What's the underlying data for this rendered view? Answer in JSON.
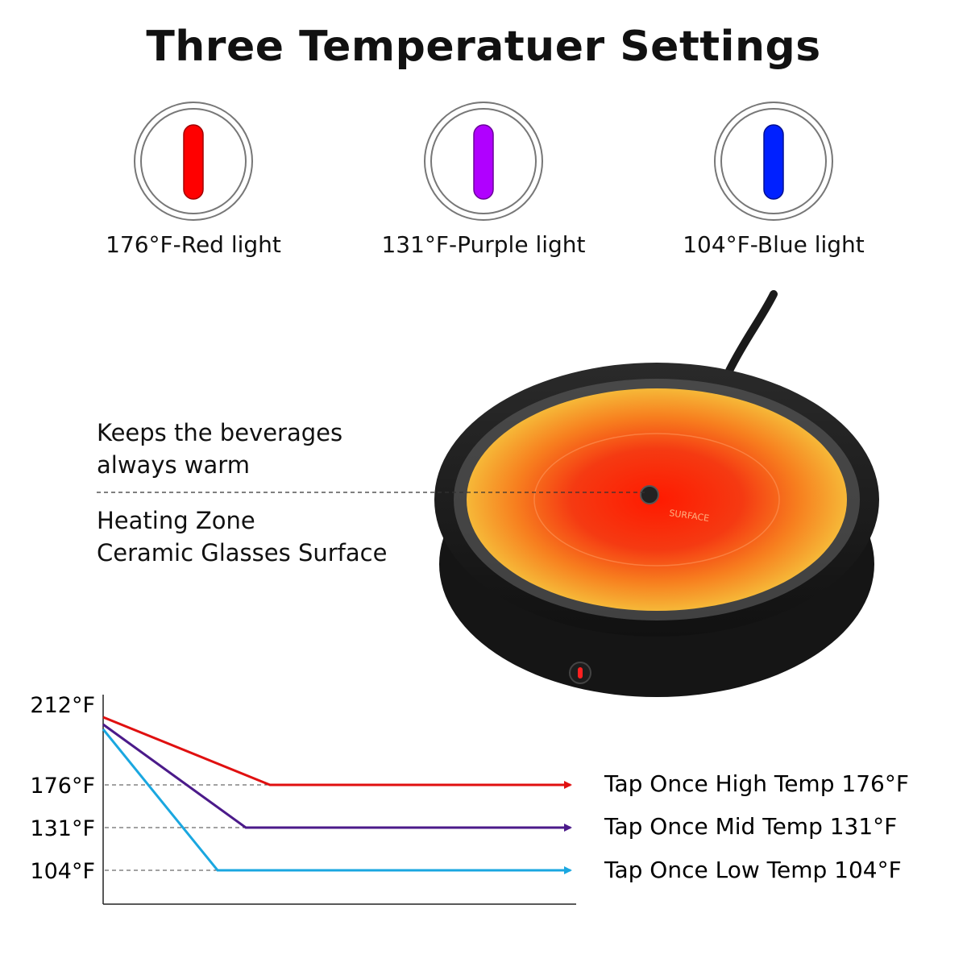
{
  "title": "Three Temperatuer Settings",
  "settings": [
    {
      "label": "176°F-Red light",
      "color": "#ff0000"
    },
    {
      "label": "131°F-Purple light",
      "color": "#b000ff"
    },
    {
      "label": "104°F-Blue light",
      "color": "#0020ff"
    }
  ],
  "device": {
    "description_top": [
      "Keeps the beverages",
      "always warm"
    ],
    "description_bottom": [
      "Heating Zone",
      "Ceramic Glasses Surface"
    ],
    "plate_text": "SURFACE"
  },
  "chart_data": {
    "type": "line",
    "y_ticks": [
      "212°F",
      "176°F",
      "131°F",
      "104°F"
    ],
    "series": [
      {
        "name": "Tap Once High Temp 176°F",
        "color": "#e01010",
        "start": 205,
        "plateau": 176,
        "transition_end": 0.35
      },
      {
        "name": "Tap Once Mid Temp 131°F",
        "color": "#4b1a8a",
        "start": 200,
        "plateau": 131,
        "transition_end": 0.3
      },
      {
        "name": "Tap Once Low Temp 104°F",
        "color": "#1aa7e0",
        "start": 197,
        "plateau": 104,
        "transition_end": 0.24
      }
    ]
  }
}
